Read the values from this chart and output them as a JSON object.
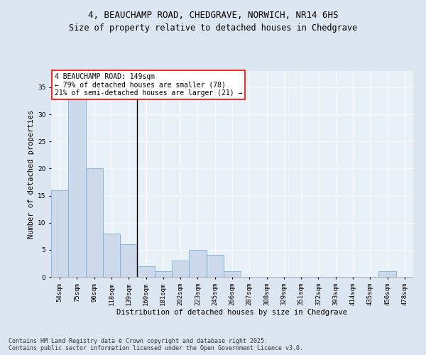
{
  "title_line1": "4, BEAUCHAMP ROAD, CHEDGRAVE, NORWICH, NR14 6HS",
  "title_line2": "Size of property relative to detached houses in Chedgrave",
  "xlabel": "Distribution of detached houses by size in Chedgrave",
  "ylabel": "Number of detached properties",
  "categories": [
    "54sqm",
    "75sqm",
    "96sqm",
    "118sqm",
    "139sqm",
    "160sqm",
    "181sqm",
    "202sqm",
    "223sqm",
    "245sqm",
    "266sqm",
    "287sqm",
    "308sqm",
    "329sqm",
    "351sqm",
    "372sqm",
    "393sqm",
    "414sqm",
    "435sqm",
    "456sqm",
    "478sqm"
  ],
  "values": [
    16,
    33,
    20,
    8,
    6,
    2,
    1,
    3,
    5,
    4,
    1,
    0,
    0,
    0,
    0,
    0,
    0,
    0,
    0,
    1,
    0
  ],
  "bar_color": "#ccd9ea",
  "bar_edge_color": "#7bafd4",
  "vline_index": 4,
  "annotation_text": "4 BEAUCHAMP ROAD: 149sqm\n← 79% of detached houses are smaller (78)\n21% of semi-detached houses are larger (21) →",
  "annotation_box_facecolor": "white",
  "annotation_box_edgecolor": "red",
  "ylim": [
    0,
    38
  ],
  "yticks": [
    0,
    5,
    10,
    15,
    20,
    25,
    30,
    35
  ],
  "background_color": "#dce6f0",
  "plot_bg_color": "#e8f0f8",
  "grid_color": "white",
  "footer_line1": "Contains HM Land Registry data © Crown copyright and database right 2025.",
  "footer_line2": "Contains public sector information licensed under the Open Government Licence v3.0.",
  "title_fontsize": 9,
  "subtitle_fontsize": 8.5,
  "axis_label_fontsize": 7.5,
  "tick_fontsize": 6.5,
  "annotation_fontsize": 7,
  "footer_fontsize": 6
}
